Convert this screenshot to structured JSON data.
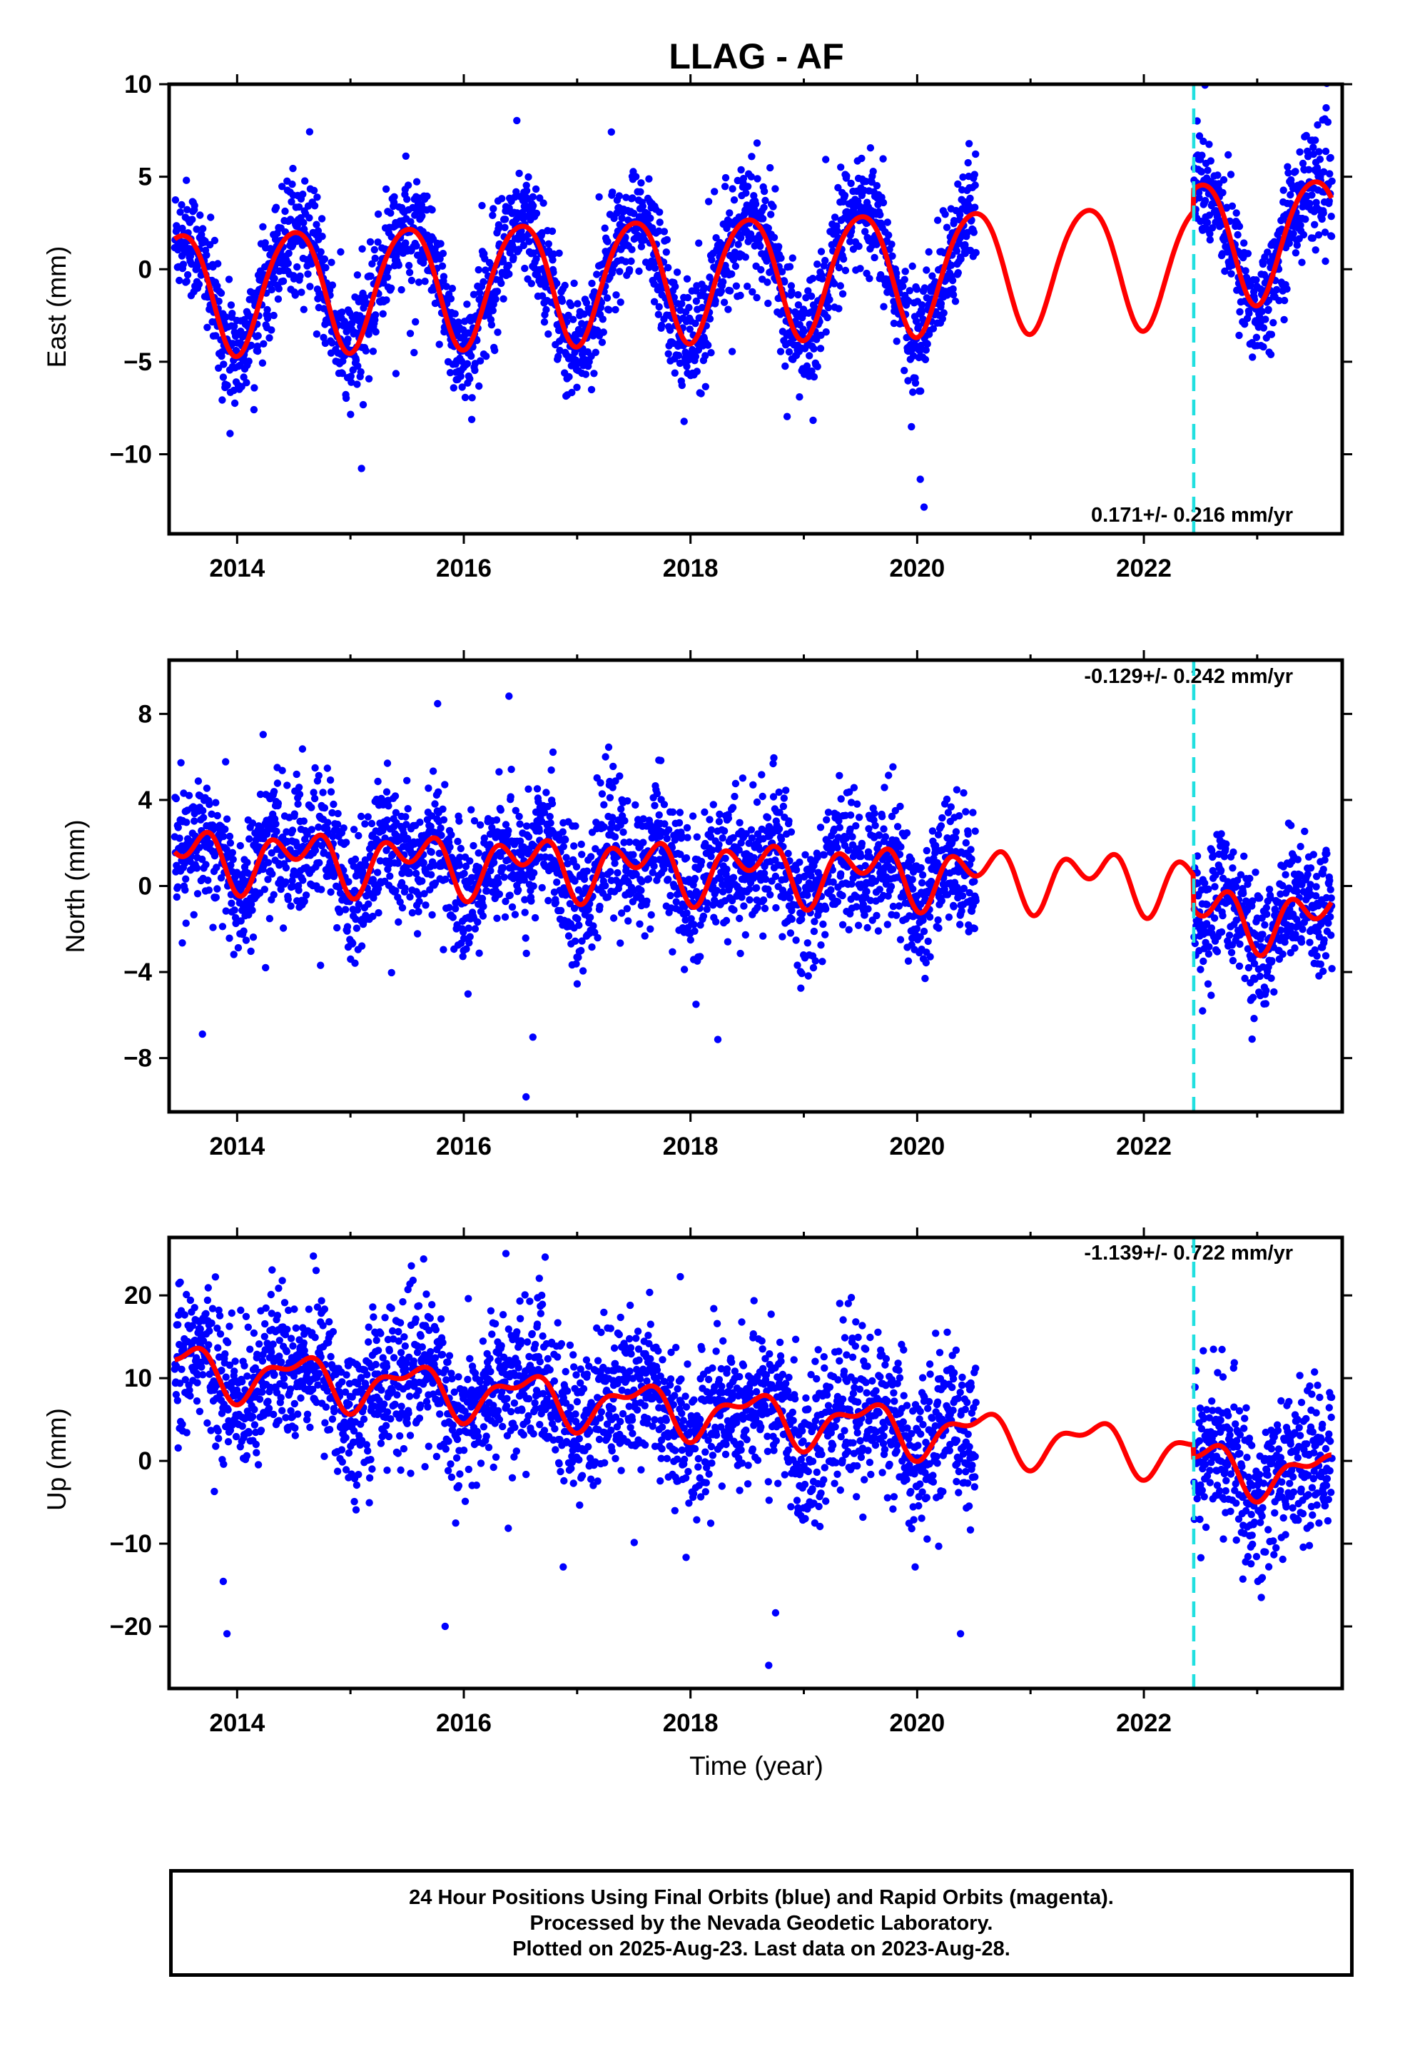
{
  "chart_data": {
    "title": "LLAG - AF",
    "xlabel": "Time (year)",
    "x_ticks": [
      "2014",
      "2016",
      "2018",
      "2020",
      "2022"
    ],
    "x_range": [
      2013.4,
      2023.75
    ],
    "event_line_x": 2022.44,
    "data_gap": [
      2020.52,
      2022.44
    ],
    "data_start": 2013.45,
    "data_end": 2023.66,
    "colors": {
      "points": "#0000ff",
      "model": "#ff0000",
      "event": "#20e0e0",
      "frame": "#000000"
    },
    "panels": [
      {
        "key": "east",
        "type": "scatter",
        "ylabel": "East (mm)",
        "ylim": [
          -14.3,
          10
        ],
        "yticks": [
          -10,
          -5,
          0,
          5,
          10
        ],
        "y_tick_labels": [
          "−10",
          "−5",
          "0",
          "5",
          "10"
        ],
        "velocity": "0.171+/- 0.216 mm/yr",
        "velocity_position": "bottom-right",
        "series": [
          {
            "x": 2013.45,
            "y": 2.0
          },
          {
            "x": 2013.55,
            "y": 2.7
          },
          {
            "x": 2013.65,
            "y": 2.2
          },
          {
            "x": 2013.75,
            "y": 0.0
          },
          {
            "x": 2013.85,
            "y": -3.0
          },
          {
            "x": 2013.95,
            "y": -4.3
          },
          {
            "x": 2014.1,
            "y": -3.0
          },
          {
            "x": 2014.25,
            "y": 0.2
          },
          {
            "x": 2014.4,
            "y": 2.0
          },
          {
            "x": 2014.55,
            "y": 2.6
          },
          {
            "x": 2014.7,
            "y": 1.0
          },
          {
            "x": 2014.85,
            "y": -2.5
          },
          {
            "x": 2014.95,
            "y": -4.0
          },
          {
            "x": 2015.15,
            "y": -2.5
          },
          {
            "x": 2015.35,
            "y": 1.2
          },
          {
            "x": 2015.55,
            "y": 2.8
          },
          {
            "x": 2015.75,
            "y": 1.0
          },
          {
            "x": 2015.9,
            "y": -3.0
          },
          {
            "x": 2015.95,
            "y": -3.9
          },
          {
            "x": 2016.2,
            "y": -2.0
          },
          {
            "x": 2016.4,
            "y": 1.8
          },
          {
            "x": 2016.55,
            "y": 3.0
          },
          {
            "x": 2016.75,
            "y": 0.5
          },
          {
            "x": 2016.95,
            "y": -3.7
          },
          {
            "x": 2017.2,
            "y": -1.8
          },
          {
            "x": 2017.4,
            "y": 2.0
          },
          {
            "x": 2017.55,
            "y": 3.2
          },
          {
            "x": 2017.75,
            "y": 0.5
          },
          {
            "x": 2017.95,
            "y": -3.6
          },
          {
            "x": 2018.2,
            "y": -1.6
          },
          {
            "x": 2018.4,
            "y": 2.0
          },
          {
            "x": 2018.55,
            "y": 3.3
          },
          {
            "x": 2018.75,
            "y": 0.5
          },
          {
            "x": 2018.95,
            "y": -3.5
          },
          {
            "x": 2019.2,
            "y": -1.5
          },
          {
            "x": 2019.4,
            "y": 2.2
          },
          {
            "x": 2019.55,
            "y": 3.5
          },
          {
            "x": 2019.75,
            "y": 0.5
          },
          {
            "x": 2019.95,
            "y": -3.3
          },
          {
            "x": 2020.2,
            "y": -1.0
          },
          {
            "x": 2020.5,
            "y": 3.6
          }
        ],
        "model_params": {
          "offset": -0.4,
          "trend": 0.171,
          "annual_amp": 3.3,
          "annual_phase": 0.25,
          "semi_amp": 0.35,
          "semi_phase": 0.1,
          "step_at_event": 1.2
        }
      },
      {
        "key": "north",
        "type": "scatter",
        "ylabel": "North (mm)",
        "ylim": [
          -10.5,
          10.5
        ],
        "yticks": [
          -8,
          -4,
          0,
          4,
          8
        ],
        "y_tick_labels": [
          "−8",
          "−4",
          "0",
          "4",
          "8"
        ],
        "velocity": "-0.129+/- 0.242 mm/yr",
        "velocity_position": "top-right",
        "model_params": {
          "offset": 0.8,
          "trend": -0.129,
          "annual_amp": 0.9,
          "annual_phase": 0.3,
          "semi_amp": 0.9,
          "semi_phase": 0.15,
          "step_at_event": -1.6
        }
      },
      {
        "key": "up",
        "type": "scatter",
        "ylabel": "Up (mm)",
        "ylim": [
          -27.5,
          27
        ],
        "yticks": [
          -20,
          -10,
          0,
          10,
          20
        ],
        "y_tick_labels": [
          "−20",
          "−10",
          "0",
          "10",
          "20"
        ],
        "velocity": "-1.139+/- 0.722 mm/yr",
        "velocity_position": "top-right",
        "model_params": {
          "offset": 6.0,
          "trend": -1.139,
          "annual_amp": 2.6,
          "annual_phase": 0.28,
          "semi_amp": 1.3,
          "semi_phase": 0.1,
          "step_at_event": -1.5
        }
      }
    ]
  },
  "footer": {
    "line1": "24 Hour Positions Using Final Orbits (blue) and Rapid Orbits (magenta).",
    "line2": "Processed by the Nevada Geodetic Laboratory.",
    "line3": "Plotted on 2025-Aug-23. Last data on 2023-Aug-28."
  }
}
